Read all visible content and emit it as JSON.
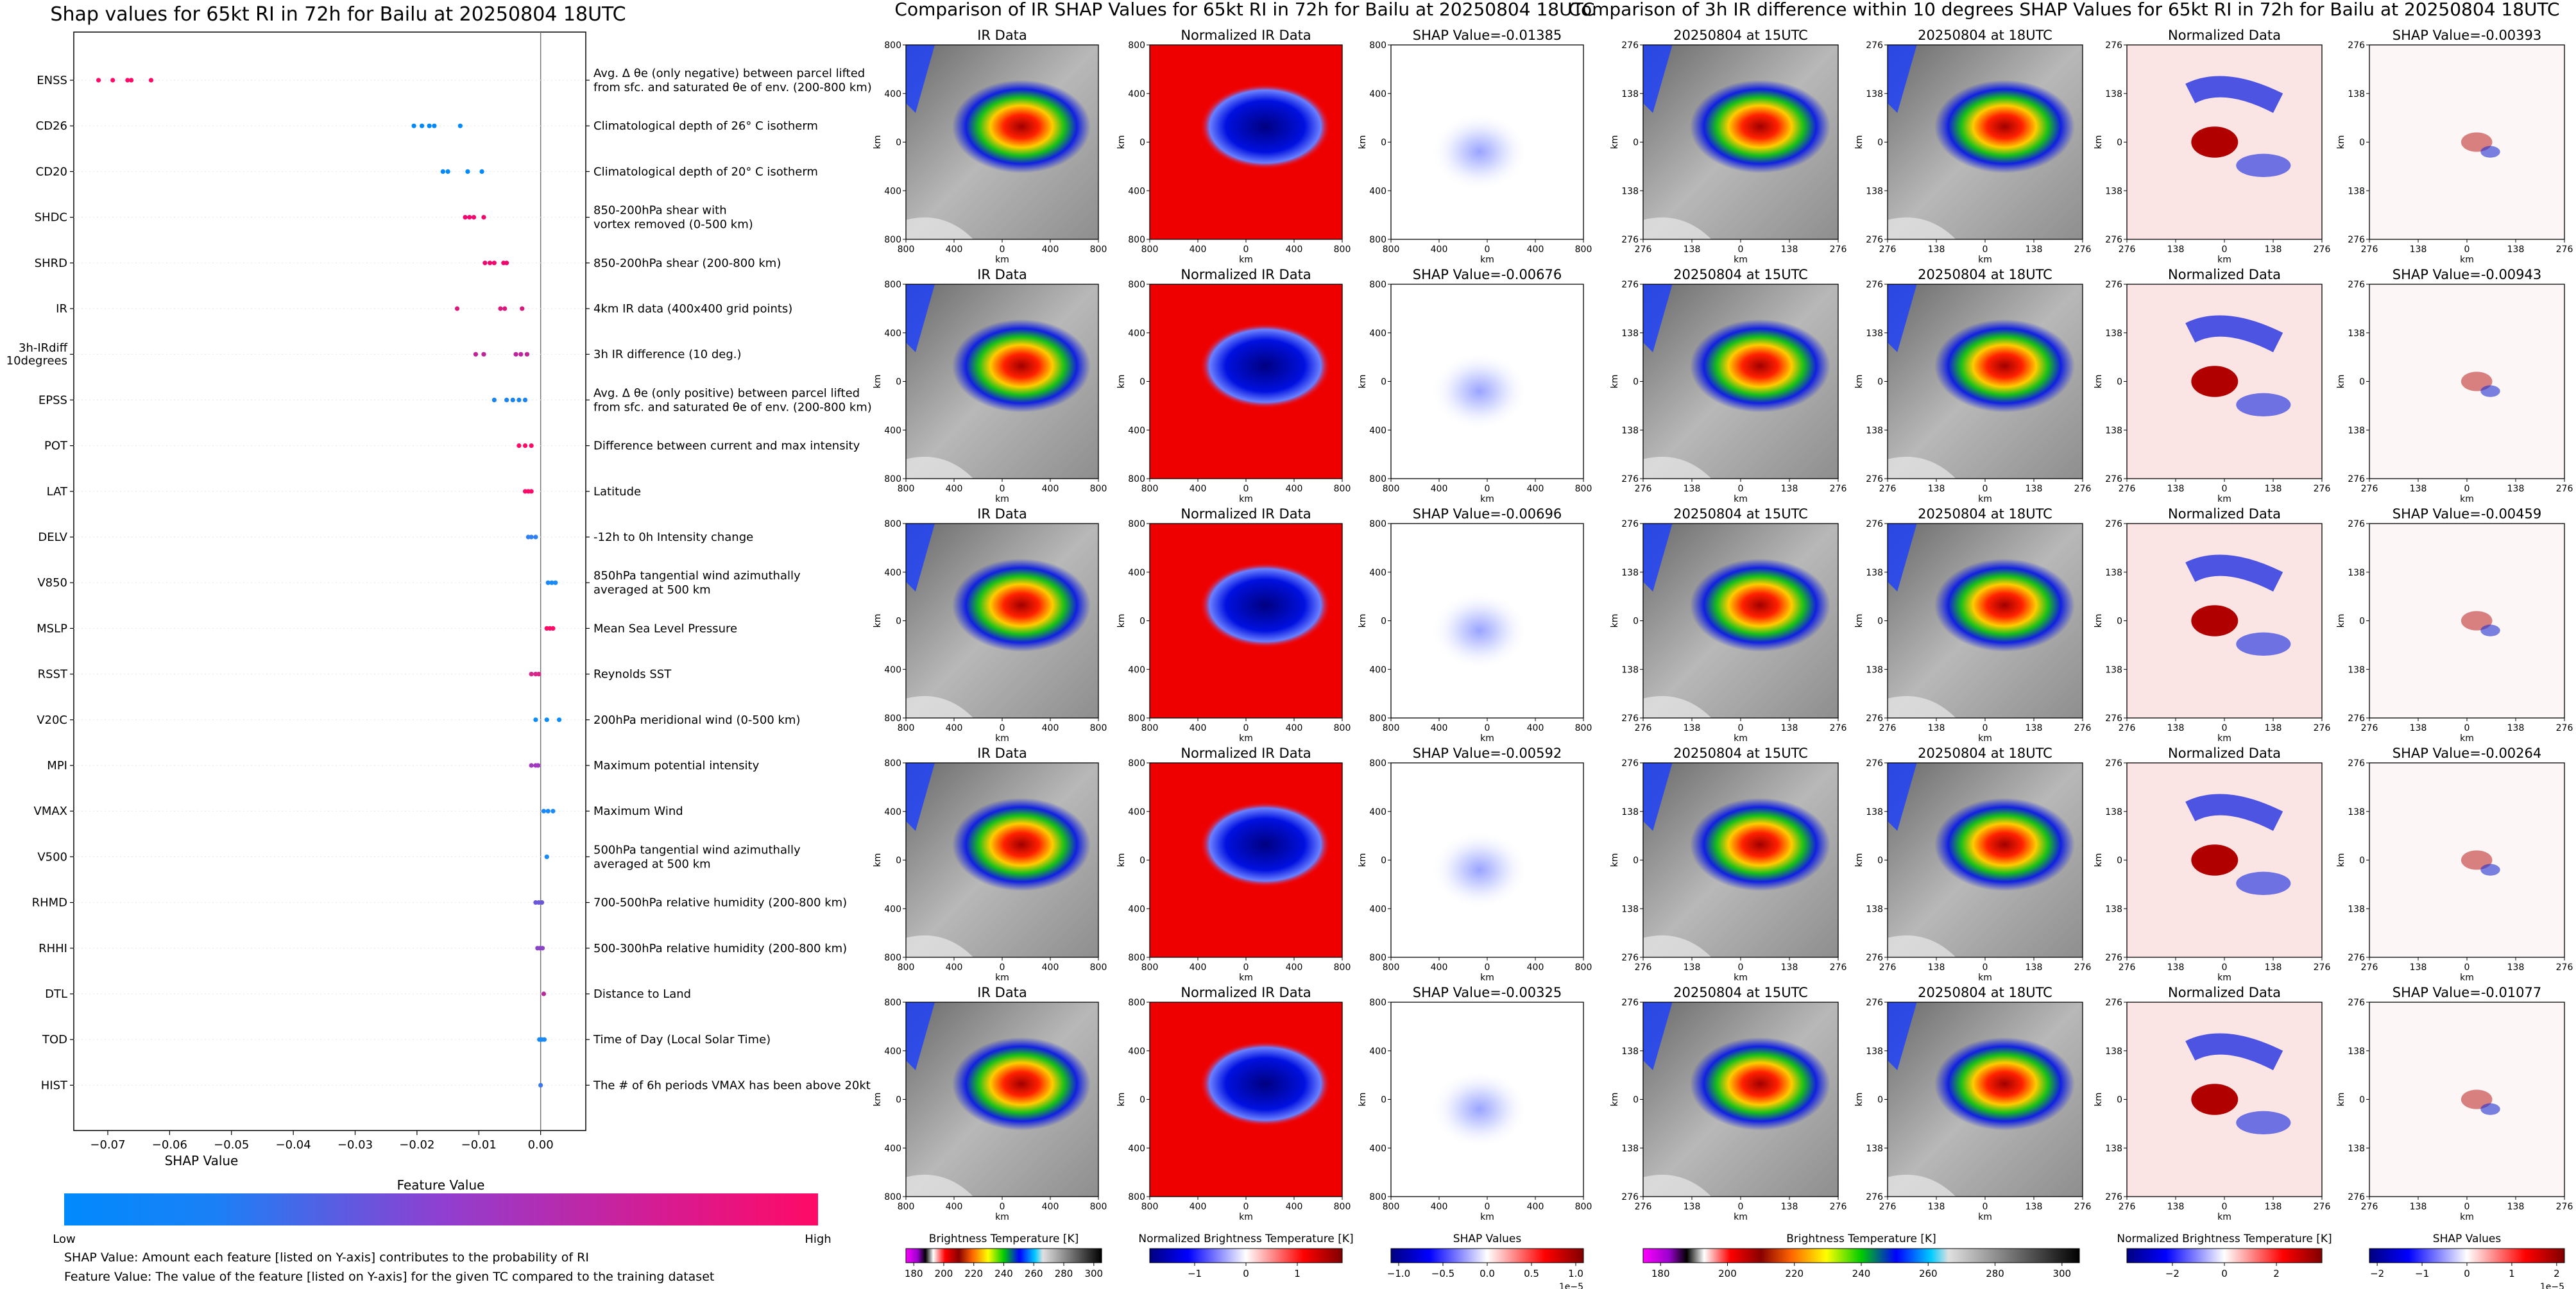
{
  "page": {
    "left_title": "Shap values for 65kt RI in 72h for Bailu at 20250804 18UTC",
    "mid_title": "Comparison of IR SHAP Values for 65kt RI in 72h for Bailu at 20250804 18UTC",
    "right_title": "Comparison of 3h IR difference within 10 degrees SHAP Values for 65kt RI in 72h for Bailu at 20250804 18UTC",
    "feature_value_label": "Feature Value",
    "low_label": "Low",
    "high_label": "High",
    "note1": "SHAP Value: Amount each feature [listed on Y-axis] contributes to the probability of RI",
    "note2": "Feature Value: The value of the feature [listed on Y-axis] for the given TC compared to the training dataset"
  },
  "colors": {
    "low": "#008afc",
    "mid": "#8f3fd0",
    "high": "#ff0a66"
  },
  "chart_data": [
    {
      "type": "scatter",
      "title": "Shap values for 65kt RI in 72h for Bailu at 20250804 18UTC",
      "xlabel": "SHAP Value",
      "xlim": [
        -0.0755,
        0.0073
      ],
      "xticks": [
        -0.07,
        -0.06,
        -0.05,
        -0.04,
        -0.03,
        -0.02,
        -0.01,
        0.0
      ],
      "xtick_labels": [
        "−0.07",
        "−0.06",
        "−0.05",
        "−0.04",
        "−0.03",
        "−0.02",
        "−0.01",
        "0.00"
      ],
      "features": [
        {
          "name": "ENSS",
          "lines": [
            "Avg. Δ θe (only negative) between parcel lifted",
            "from sfc. and saturated θe of env. (200-800 km)"
          ],
          "values": [
            -0.0715,
            -0.0692,
            -0.0668,
            -0.0662,
            -0.063
          ],
          "color": "#ff0a66"
        },
        {
          "name": "CD26",
          "lines": [
            "Climatological depth of 26° C isotherm"
          ],
          "values": [
            -0.0205,
            -0.0192,
            -0.018,
            -0.0172,
            -0.013
          ],
          "color": "#008afc"
        },
        {
          "name": "CD20",
          "lines": [
            "Climatological depth of 20° C isotherm"
          ],
          "values": [
            -0.0158,
            -0.015,
            -0.0118,
            -0.0095
          ],
          "color": "#008afc"
        },
        {
          "name": "SHDC",
          "lines": [
            "850-200hPa shear with",
            "vortex removed (0-500 km)"
          ],
          "values": [
            -0.0122,
            -0.0115,
            -0.0108,
            -0.0092
          ],
          "color": "#f0086e"
        },
        {
          "name": "SHRD",
          "lines": [
            "850-200hPa shear (200-800 km)"
          ],
          "values": [
            -0.009,
            -0.0082,
            -0.0075,
            -0.006,
            -0.0055
          ],
          "color": "#f0086e"
        },
        {
          "name": "IR",
          "lines": [
            "4km IR data (400x400 grid points)"
          ],
          "values": [
            -0.0135,
            -0.0065,
            -0.0058,
            -0.003
          ],
          "color": "#d81a7c"
        },
        {
          "name": "3h-IRdiff\n10degrees",
          "lines": [
            "3h IR difference (10 deg.)"
          ],
          "values": [
            -0.0105,
            -0.0092,
            -0.004,
            -0.0032,
            -0.0022
          ],
          "color": "#c0229a"
        },
        {
          "name": "EPSS",
          "lines": [
            "Avg. Δ θe (only positive) between parcel lifted",
            "from sfc. and saturated θe of env. (200-800 km)"
          ],
          "values": [
            -0.0075,
            -0.0055,
            -0.0045,
            -0.0035,
            -0.0025
          ],
          "color": "#1a84f0"
        },
        {
          "name": "POT",
          "lines": [
            "Difference between current and max intensity"
          ],
          "values": [
            -0.0035,
            -0.0025,
            -0.0015
          ],
          "color": "#ff0a66"
        },
        {
          "name": "LAT",
          "lines": [
            "Latitude"
          ],
          "values": [
            -0.0025,
            -0.002,
            -0.0015
          ],
          "color": "#ff0a66"
        },
        {
          "name": "DELV",
          "lines": [
            "-12h to 0h Intensity change"
          ],
          "values": [
            -0.002,
            -0.0015,
            -0.0008
          ],
          "color": "#3080f0"
        },
        {
          "name": "V850",
          "lines": [
            "850hPa tangential wind azimuthally",
            "averaged at 500 km"
          ],
          "values": [
            0.0012,
            0.0018,
            0.0024
          ],
          "color": "#1a8af8"
        },
        {
          "name": "MSLP",
          "lines": [
            "Mean Sea Level Pressure"
          ],
          "values": [
            0.001,
            0.0015,
            0.002
          ],
          "color": "#ff0a66"
        },
        {
          "name": "RSST",
          "lines": [
            "Reynolds SST"
          ],
          "values": [
            -0.0015,
            -0.0008,
            -0.0003
          ],
          "color": "#d8268a"
        },
        {
          "name": "V20C",
          "lines": [
            "200hPa meridional wind (0-500 km)"
          ],
          "values": [
            -0.0008,
            0.001,
            0.003
          ],
          "color": "#0a8cfc"
        },
        {
          "name": "MPI",
          "lines": [
            "Maximum potential intensity"
          ],
          "values": [
            -0.0015,
            -0.0008,
            -0.0004
          ],
          "color": "#a038c0"
        },
        {
          "name": "VMAX",
          "lines": [
            "Maximum Wind"
          ],
          "values": [
            0.0005,
            0.0012,
            0.002
          ],
          "color": "#1a8af8"
        },
        {
          "name": "V500",
          "lines": [
            "500hPa tangential wind azimuthally",
            "averaged at 500 km"
          ],
          "values": [
            0.001
          ],
          "color": "#1a8af8"
        },
        {
          "name": "RHMD",
          "lines": [
            "700-500hPa relative humidity (200-800 km)"
          ],
          "values": [
            -0.0008,
            -0.0003,
            0.0002
          ],
          "color": "#6a58d8"
        },
        {
          "name": "RHHI",
          "lines": [
            "500-300hPa relative humidity (200-800 km)"
          ],
          "values": [
            -0.0005,
            -0.0001,
            0.0003
          ],
          "color": "#8a44c8"
        },
        {
          "name": "DTL",
          "lines": [
            "Distance to Land"
          ],
          "values": [
            0.0005
          ],
          "color": "#b82a9c"
        },
        {
          "name": "TOD",
          "lines": [
            "Time of Day (Local Solar Time)"
          ],
          "values": [
            -0.0002,
            0.0002,
            0.0006
          ],
          "color": "#1a8af8"
        },
        {
          "name": "HIST",
          "lines": [
            "The # of 6h periods VMAX has been above 20kt"
          ],
          "values": [
            0.0
          ],
          "color": "#3a78e8"
        }
      ]
    },
    {
      "type": "heatmap",
      "title": "Comparison of IR SHAP Values for 65kt RI in 72h for Bailu at 20250804 18UTC",
      "columns": [
        "IR Data",
        "Normalized IR Data",
        "SHAP Value"
      ],
      "shap_values": [
        "SHAP Value=-0.01385",
        "SHAP Value=-0.00676",
        "SHAP Value=-0.00696",
        "SHAP Value=-0.00592",
        "SHAP Value=-0.00325"
      ],
      "axis_ticks": [
        "800",
        "400",
        "0",
        "400",
        "800"
      ],
      "axis_label": "km",
      "colorbars": [
        {
          "label": "Brightness Temperature [K]",
          "ticks": [
            "180",
            "200",
            "220",
            "240",
            "260",
            "280",
            "300"
          ]
        },
        {
          "label": "Normalized Brightness Temperature [K]",
          "ticks": [
            "−1",
            "0",
            "1"
          ]
        },
        {
          "label": "SHAP Values",
          "ticks": [
            "−1.0",
            "−0.5",
            "0.0",
            "0.5",
            "1.0"
          ],
          "offset": "1e−5"
        }
      ]
    },
    {
      "type": "heatmap",
      "title": "Comparison of 3h IR difference within 10 degrees SHAP Values for 65kt RI in 72h for Bailu at 20250804 18UTC",
      "columns": [
        "20250804 at 15UTC",
        "20250804 at 18UTC",
        "Normalized Data",
        "SHAP Value"
      ],
      "shap_values": [
        "SHAP Value=-0.00393",
        "SHAP Value=-0.00943",
        "SHAP Value=-0.00459",
        "SHAP Value=-0.00264",
        "SHAP Value=-0.01077"
      ],
      "axis_ticks": [
        "276",
        "138",
        "0",
        "138",
        "276"
      ],
      "axis_label": "km",
      "colorbars": [
        {
          "label": "Brightness Temperature [K]",
          "ticks": [
            "180",
            "200",
            "220",
            "240",
            "260",
            "280",
            "300"
          ]
        },
        {
          "label": "Normalized Brightness Temperature [K]",
          "ticks": [
            "−2",
            "0",
            "2"
          ]
        },
        {
          "label": "SHAP Values",
          "ticks": [
            "−2",
            "−1",
            "0",
            "1",
            "2"
          ],
          "offset": "1e−5"
        }
      ]
    }
  ]
}
